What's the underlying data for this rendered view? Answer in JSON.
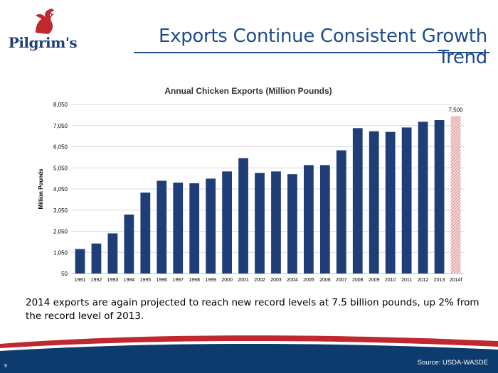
{
  "slide": {
    "title": "Exports Continue Consistent Growth Trend",
    "logo_text": "Pilgrim's",
    "caption": "2014 exports are again projected to reach new record levels at 7.5 billion pounds,  up 2% from the record level of 2013.",
    "source": "Source:  USDA-WASDE",
    "page_number": "9"
  },
  "colors": {
    "brand_blue": "#1e4b8c",
    "bar_navy": "#1f3e77",
    "forecast_red": "#c9534f",
    "footer_blue": "#0e3b6e",
    "footer_red": "#c0282f"
  },
  "chart_data": {
    "type": "bar",
    "title": "Annual Chicken Exports (Million Pounds)",
    "ylabel": "Million Pounds",
    "xlabel": "",
    "ylim": [
      50,
      8050
    ],
    "yticks": [
      50,
      1050,
      2050,
      3050,
      4050,
      5050,
      6050,
      7050,
      8050
    ],
    "ytick_labels": [
      "50",
      "1,050",
      "2,050",
      "3,050",
      "4,050",
      "5,050",
      "6,050",
      "7,050",
      "8,050"
    ],
    "grid": true,
    "categories": [
      "1991",
      "1992",
      "1993",
      "1994",
      "1995",
      "1996",
      "1997",
      "1998",
      "1999",
      "2000",
      "2001",
      "2002",
      "2003",
      "2004",
      "2005",
      "2006",
      "2007",
      "2008",
      "2009",
      "2010",
      "2011",
      "2012",
      "2013",
      "2014f"
    ],
    "values": [
      1210,
      1470,
      1950,
      2840,
      3880,
      4440,
      4350,
      4320,
      4540,
      4880,
      5510,
      4810,
      4880,
      4750,
      5180,
      5180,
      5880,
      6930,
      6780,
      6750,
      6960,
      7230,
      7310,
      7500
    ],
    "forecast_category": "2014f",
    "data_labels": [
      {
        "category": "2014f",
        "text": "7,500"
      }
    ]
  }
}
